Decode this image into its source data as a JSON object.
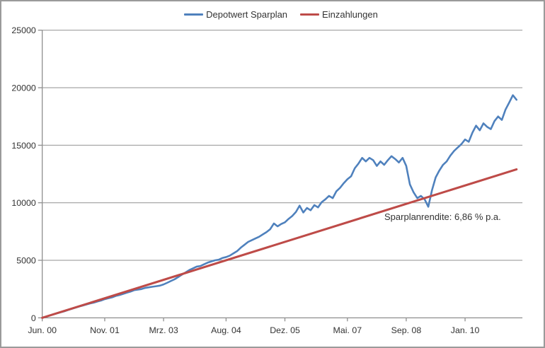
{
  "chart_data": {
    "type": "line",
    "title": "",
    "x_unit": "months since Jun. 00",
    "x_domain": [
      0,
      130.6
    ],
    "y_domain": [
      0,
      25000
    ],
    "y_ticks": [
      0,
      5000,
      10000,
      15000,
      20000,
      25000
    ],
    "y_tick_labels": [
      "0",
      "5000",
      "10000",
      "15000",
      "20000",
      "25000"
    ],
    "x_ticks": [
      {
        "month": 0,
        "label": "Jun. 00"
      },
      {
        "month": 17,
        "label": "Nov. 01"
      },
      {
        "month": 33,
        "label": "Mrz. 03"
      },
      {
        "month": 50,
        "label": "Aug. 04"
      },
      {
        "month": 66,
        "label": "Dez. 05"
      },
      {
        "month": 83,
        "label": "Mai. 07"
      },
      {
        "month": 99,
        "label": "Sep. 08"
      },
      {
        "month": 115,
        "label": "Jan. 10"
      }
    ],
    "grid": "horizontal",
    "legend_position": "top-center",
    "colors": {
      "grid": "#a8a8a8",
      "axis": "#8e8e8e",
      "tick_text": "#333333"
    },
    "series": [
      {
        "name": "Depotwert Sparplan",
        "color": "#4F81BD",
        "stroke_width": 2.6,
        "x_step": 1,
        "values": [
          0,
          90,
          200,
          290,
          390,
          480,
          570,
          680,
          780,
          880,
          980,
          1070,
          1160,
          1250,
          1320,
          1420,
          1500,
          1620,
          1700,
          1780,
          1900,
          1980,
          2080,
          2180,
          2280,
          2400,
          2450,
          2500,
          2600,
          2650,
          2700,
          2750,
          2800,
          2900,
          3050,
          3200,
          3350,
          3550,
          3750,
          3950,
          4150,
          4300,
          4450,
          4500,
          4650,
          4800,
          4900,
          5000,
          5050,
          5200,
          5280,
          5400,
          5600,
          5800,
          6100,
          6350,
          6600,
          6750,
          6900,
          7050,
          7250,
          7450,
          7700,
          8200,
          7950,
          8150,
          8300,
          8600,
          8850,
          9200,
          9750,
          9150,
          9550,
          9350,
          9800,
          9600,
          10050,
          10300,
          10600,
          10400,
          11000,
          11300,
          11700,
          12050,
          12300,
          13000,
          13400,
          13900,
          13600,
          13900,
          13700,
          13200,
          13600,
          13300,
          13700,
          14050,
          13800,
          13500,
          13900,
          13200,
          11600,
          10900,
          10400,
          10600,
          10300,
          9650,
          11100,
          12200,
          12800,
          13300,
          13600,
          14100,
          14500,
          14800,
          15100,
          15500,
          15300,
          16100,
          16700,
          16300,
          16900,
          16600,
          16400,
          17100,
          17500,
          17200,
          18100,
          18700,
          19350,
          18950
        ]
      },
      {
        "name": "Einzahlungen",
        "color": "#BE4B48",
        "stroke_width": 3.1,
        "x": [
          0,
          129
        ],
        "values": [
          0,
          12900
        ]
      }
    ],
    "annotation": {
      "text": "Sparplanrendite: 6,86 % p.a."
    }
  }
}
